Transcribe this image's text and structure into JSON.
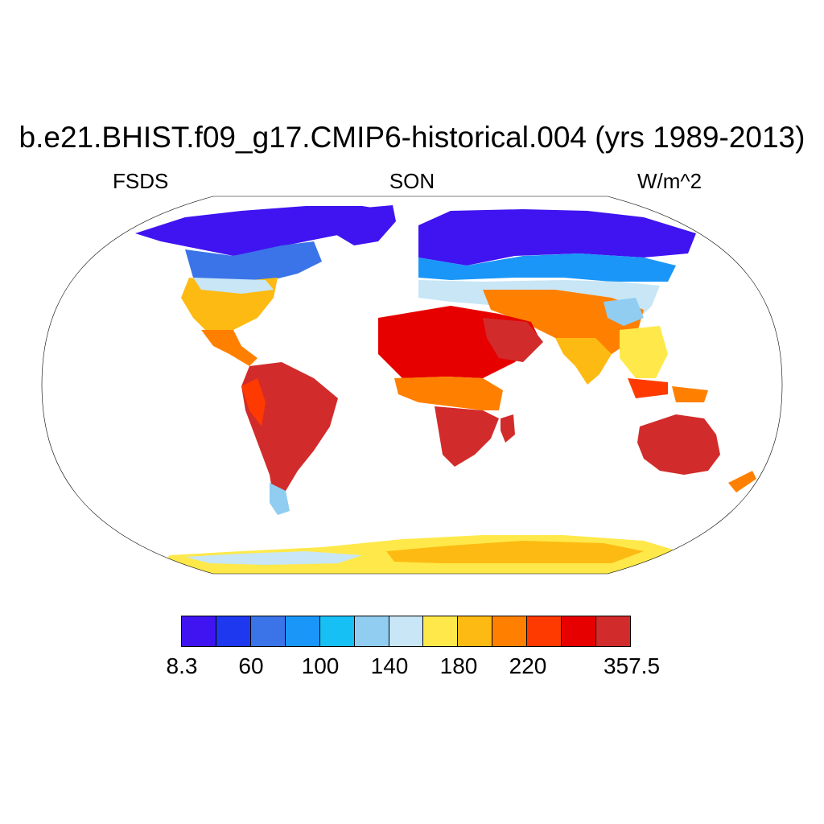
{
  "title": "b.e21.BHIST.f09_g17.CMIP6-historical.004 (yrs 1989-2013)",
  "left_label": "FSDS",
  "center_label": "SON",
  "right_label": "W/m^2",
  "colorbar": {
    "colors": [
      "#3f14f0",
      "#1e38f0",
      "#3a74e8",
      "#1a96f8",
      "#16c0f5",
      "#90cdf0",
      "#c8e6f5",
      "#ffe94a",
      "#fdba12",
      "#ff8000",
      "#ff3a00",
      "#e60000",
      "#d22b2b"
    ],
    "labels": [
      "8.3",
      "60",
      "100",
      "140",
      "180",
      "220",
      "357.5"
    ]
  }
}
